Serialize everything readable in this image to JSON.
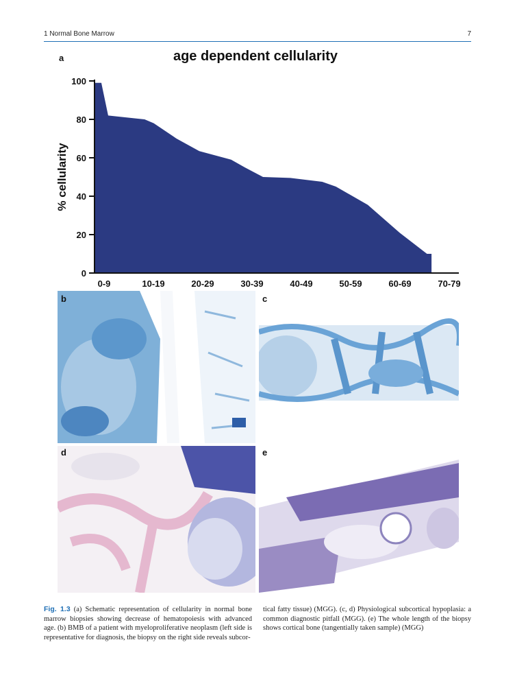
{
  "header": {
    "chapter": "1   Normal Bone Marrow",
    "page_number": "7"
  },
  "figure": {
    "panel_a_letter": "a",
    "panel_letters": {
      "b": "b",
      "c": "c",
      "d": "d",
      "e": "e"
    }
  },
  "chart_data": {
    "type": "area",
    "title": "age dependent cellularity",
    "xlabel": "",
    "ylabel": "% cellularity",
    "categories": [
      "0-9",
      "10-19",
      "20-29",
      "30-39",
      "40-49",
      "50-59",
      "60-69",
      "70-79"
    ],
    "yticks": [
      0,
      20,
      40,
      60,
      80,
      100
    ],
    "ylim": [
      0,
      100
    ],
    "xlim": [
      0,
      80
    ],
    "grid": false,
    "fill_color": "#2b3a82",
    "points": [
      {
        "x": 0,
        "y": 99
      },
      {
        "x": 1.5,
        "y": 99
      },
      {
        "x": 3,
        "y": 82
      },
      {
        "x": 9,
        "y": 80.5
      },
      {
        "x": 11,
        "y": 80
      },
      {
        "x": 13,
        "y": 78
      },
      {
        "x": 18,
        "y": 70
      },
      {
        "x": 23,
        "y": 63.5
      },
      {
        "x": 30,
        "y": 59
      },
      {
        "x": 33,
        "y": 55
      },
      {
        "x": 37,
        "y": 50
      },
      {
        "x": 43,
        "y": 49.5
      },
      {
        "x": 50,
        "y": 47.5
      },
      {
        "x": 53,
        "y": 45
      },
      {
        "x": 60,
        "y": 35.5
      },
      {
        "x": 67,
        "y": 21
      },
      {
        "x": 73,
        "y": 10
      },
      {
        "x": 74,
        "y": 10
      }
    ]
  },
  "caption": {
    "fig_label": "Fig. 1.3",
    "col1": "(a) Schematic representation of cellularity in normal bone marrow biopsies showing decrease of hematopoiesis with advanced age. (b) BMB of a patient with myeloproliferative neoplasm (left side is representative for diagnosis, the biopsy on the right side reveals subcor-",
    "col2": "tical fatty tissue) (MGG). (c, d) Physiological subcortical hypoplasia: a common diagnostic pitfall (MGG). (e) The whole length of the biopsy shows cortical bone (tangentially taken sample) (MGG)"
  }
}
